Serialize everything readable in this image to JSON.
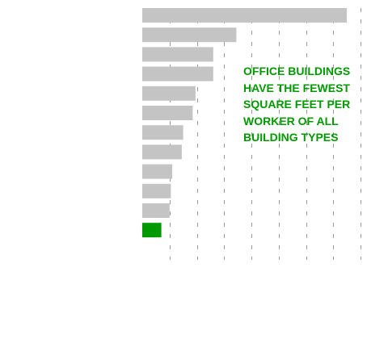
{
  "chart_data": {
    "type": "bar",
    "orientation": "horizontal",
    "categories": [
      "",
      "",
      "",
      "",
      "",
      "",
      "",
      "",
      "",
      "",
      "",
      ""
    ],
    "values": [
      7500,
      3450,
      2600,
      2600,
      1950,
      1850,
      1500,
      1450,
      1100,
      1050,
      1000,
      700
    ],
    "highlight_index": 11,
    "xlim": [
      0,
      8000
    ],
    "grid": true,
    "title": "",
    "xlabel": "",
    "ylabel": "",
    "annotation": {
      "lines": [
        "OFFICE BUILDINGS",
        "HAVE THE FEWEST",
        "SQUARE FEET PER",
        "WORKER OF ALL",
        "BUILDING TYPES"
      ]
    }
  },
  "colors": {
    "bar": "#c4c4c4",
    "highlight": "#009900",
    "grid": "#999999",
    "annotation": "#009900"
  }
}
